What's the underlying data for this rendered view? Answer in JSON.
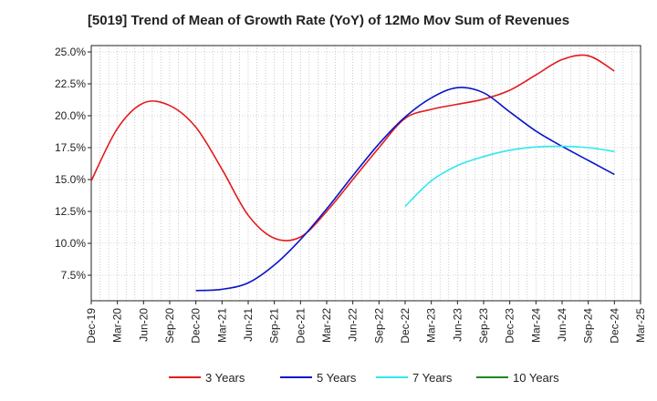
{
  "chart_data": {
    "type": "line",
    "title": "[5019]  Trend of Mean of Growth Rate (YoY) of 12Mo Mov Sum of Revenues",
    "xlabel": "",
    "ylabel": "",
    "ylim": [
      5.5,
      25.5
    ],
    "y_ticks": [
      7.5,
      10.0,
      12.5,
      15.0,
      17.5,
      20.0,
      22.5,
      25.0
    ],
    "y_tick_labels": [
      "7.5%",
      "10.0%",
      "12.5%",
      "15.0%",
      "17.5%",
      "20.0%",
      "22.5%",
      "25.0%"
    ],
    "x_tick_labels": [
      "Dec-19",
      "Mar-20",
      "Jun-20",
      "Sep-20",
      "Dec-20",
      "Mar-21",
      "Jun-21",
      "Sep-21",
      "Dec-21",
      "Mar-22",
      "Jun-22",
      "Sep-22",
      "Dec-22",
      "Mar-23",
      "Jun-23",
      "Sep-23",
      "Dec-23",
      "Mar-24",
      "Jun-24",
      "Sep-24",
      "Dec-24",
      "Mar-25"
    ],
    "x_month_index_note": "x values are months since Dec-19",
    "legend_position": "bottom",
    "grid": true,
    "series": [
      {
        "name": "3 Years",
        "color": "#e31a1c",
        "x": [
          0,
          3,
          6,
          9,
          12,
          15,
          18,
          21,
          24,
          27,
          30,
          33,
          36,
          39,
          42,
          45,
          48,
          51,
          54,
          57,
          60
        ],
        "y": [
          14.9,
          19.0,
          21.0,
          20.8,
          19.1,
          15.8,
          12.2,
          10.4,
          10.5,
          12.5,
          15.0,
          17.5,
          19.8,
          20.5,
          20.9,
          21.3,
          22.0,
          23.2,
          24.4,
          24.7,
          23.5
        ]
      },
      {
        "name": "5 Years",
        "color": "#0a14c8",
        "x": [
          12,
          15,
          18,
          21,
          24,
          27,
          30,
          33,
          36,
          39,
          42,
          45,
          48,
          51,
          54,
          57,
          60
        ],
        "y": [
          6.3,
          6.4,
          6.9,
          8.3,
          10.3,
          12.7,
          15.3,
          17.8,
          19.9,
          21.4,
          22.2,
          21.8,
          20.3,
          18.8,
          17.6,
          16.5,
          15.4
        ]
      },
      {
        "name": "7 Years",
        "color": "#2ee8f0",
        "x": [
          36,
          39,
          42,
          45,
          48,
          51,
          54,
          57,
          60
        ],
        "y": [
          12.9,
          14.9,
          16.1,
          16.8,
          17.3,
          17.55,
          17.6,
          17.5,
          17.2
        ]
      },
      {
        "name": "10 Years",
        "color": "#1a8a1a",
        "x": [],
        "y": []
      }
    ]
  }
}
